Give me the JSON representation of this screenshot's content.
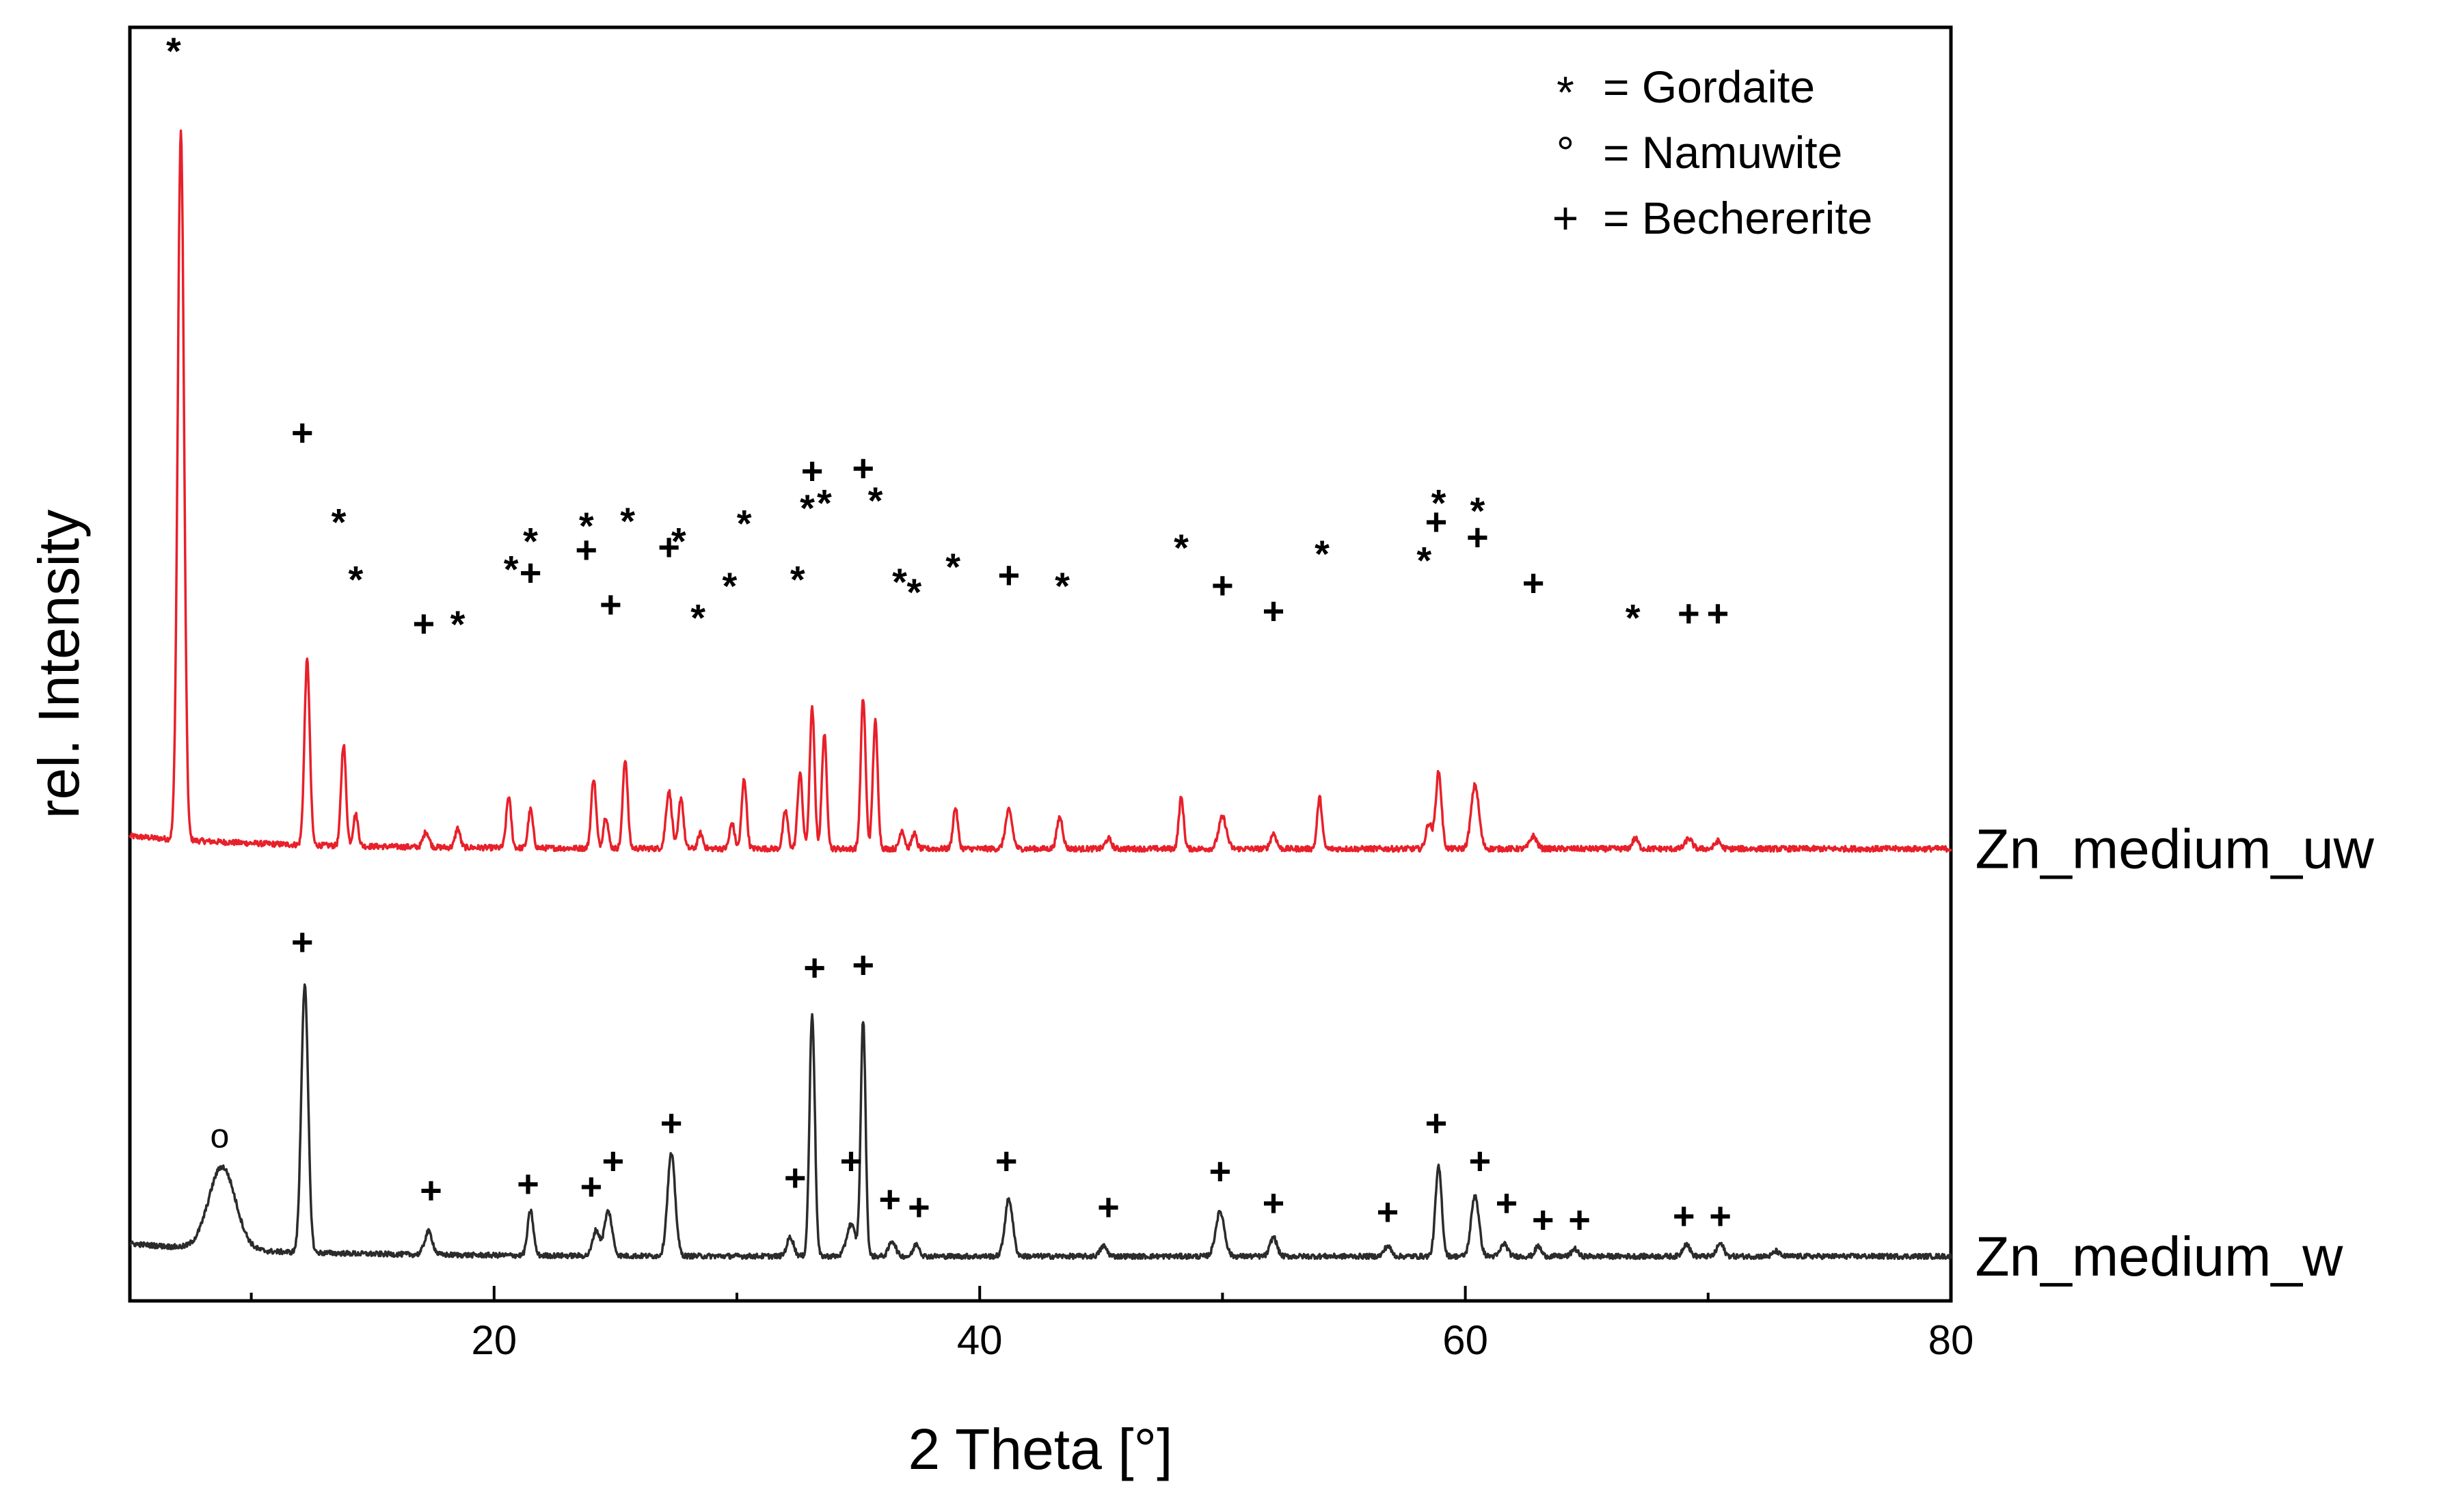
{
  "chart_data": {
    "type": "line",
    "title": "",
    "xlabel": "2 Theta [°]",
    "ylabel": "rel. Intensity",
    "xlim": [
      5,
      80
    ],
    "ylim": [
      0,
      1
    ],
    "yticks_shown": false,
    "grid": false,
    "xticks": [
      {
        "value": 20,
        "label": "20"
      },
      {
        "value": 40,
        "label": "40"
      },
      {
        "value": 60,
        "label": "60"
      },
      {
        "value": 80,
        "label": "80"
      }
    ],
    "legend": {
      "position": "top-right",
      "entries": [
        {
          "symbol": "*",
          "text": "= Gordaite"
        },
        {
          "symbol": "°",
          "text": "= Namuwite"
        },
        {
          "symbol": "+",
          "text": "= Bechererite"
        }
      ]
    },
    "series": [
      {
        "name": "Zn_medium_uw",
        "color": "#e8202a",
        "baseline": 0.355,
        "noise": 0.0022,
        "peaks": [
          {
            "x": 7.1,
            "h": 0.555,
            "w": 0.13
          },
          {
            "x": 12.3,
            "h": 0.145,
            "w": 0.11
          },
          {
            "x": 13.8,
            "h": 0.08,
            "w": 0.1
          },
          {
            "x": 14.3,
            "h": 0.025,
            "w": 0.1
          },
          {
            "x": 17.2,
            "h": 0.012,
            "w": 0.12
          },
          {
            "x": 18.5,
            "h": 0.015,
            "w": 0.1
          },
          {
            "x": 20.6,
            "h": 0.04,
            "w": 0.1
          },
          {
            "x": 21.5,
            "h": 0.03,
            "w": 0.1
          },
          {
            "x": 24.1,
            "h": 0.055,
            "w": 0.1
          },
          {
            "x": 24.6,
            "h": 0.025,
            "w": 0.1
          },
          {
            "x": 25.4,
            "h": 0.07,
            "w": 0.1
          },
          {
            "x": 27.2,
            "h": 0.045,
            "w": 0.12
          },
          {
            "x": 27.7,
            "h": 0.04,
            "w": 0.1
          },
          {
            "x": 28.5,
            "h": 0.012,
            "w": 0.1
          },
          {
            "x": 29.8,
            "h": 0.02,
            "w": 0.1
          },
          {
            "x": 30.3,
            "h": 0.055,
            "w": 0.1
          },
          {
            "x": 32.0,
            "h": 0.03,
            "w": 0.1
          },
          {
            "x": 32.6,
            "h": 0.06,
            "w": 0.1
          },
          {
            "x": 33.1,
            "h": 0.11,
            "w": 0.1
          },
          {
            "x": 33.6,
            "h": 0.09,
            "w": 0.1
          },
          {
            "x": 35.2,
            "h": 0.118,
            "w": 0.1
          },
          {
            "x": 35.7,
            "h": 0.1,
            "w": 0.1
          },
          {
            "x": 36.8,
            "h": 0.015,
            "w": 0.1
          },
          {
            "x": 37.3,
            "h": 0.012,
            "w": 0.1
          },
          {
            "x": 39.0,
            "h": 0.032,
            "w": 0.1
          },
          {
            "x": 41.2,
            "h": 0.03,
            "w": 0.14
          },
          {
            "x": 43.3,
            "h": 0.025,
            "w": 0.12
          },
          {
            "x": 45.3,
            "h": 0.008,
            "w": 0.12
          },
          {
            "x": 48.3,
            "h": 0.04,
            "w": 0.1
          },
          {
            "x": 50.0,
            "h": 0.025,
            "w": 0.16
          },
          {
            "x": 52.1,
            "h": 0.012,
            "w": 0.12
          },
          {
            "x": 54.0,
            "h": 0.04,
            "w": 0.1
          },
          {
            "x": 58.5,
            "h": 0.02,
            "w": 0.12
          },
          {
            "x": 58.9,
            "h": 0.06,
            "w": 0.12
          },
          {
            "x": 60.4,
            "h": 0.05,
            "w": 0.16
          },
          {
            "x": 62.8,
            "h": 0.01,
            "w": 0.14
          },
          {
            "x": 67.0,
            "h": 0.008,
            "w": 0.12
          },
          {
            "x": 69.2,
            "h": 0.008,
            "w": 0.14
          },
          {
            "x": 70.4,
            "h": 0.006,
            "w": 0.12
          }
        ],
        "label_x": 81.0,
        "markers": [
          {
            "x": 6.8,
            "y": 0.985,
            "sym": "*"
          },
          {
            "x": 12.1,
            "y": 0.68,
            "sym": "+"
          },
          {
            "x": 13.6,
            "y": 0.615,
            "sym": "*"
          },
          {
            "x": 14.3,
            "y": 0.57,
            "sym": "*"
          },
          {
            "x": 17.1,
            "y": 0.53,
            "sym": "+"
          },
          {
            "x": 18.5,
            "y": 0.535,
            "sym": "*"
          },
          {
            "x": 20.7,
            "y": 0.578,
            "sym": "*"
          },
          {
            "x": 21.5,
            "y": 0.6,
            "sym": "*"
          },
          {
            "x": 21.5,
            "y": 0.57,
            "sym": "+"
          },
          {
            "x": 23.8,
            "y": 0.612,
            "sym": "*"
          },
          {
            "x": 23.8,
            "y": 0.588,
            "sym": "+"
          },
          {
            "x": 24.8,
            "y": 0.545,
            "sym": "+"
          },
          {
            "x": 25.5,
            "y": 0.616,
            "sym": "*"
          },
          {
            "x": 27.2,
            "y": 0.59,
            "sym": "+"
          },
          {
            "x": 27.6,
            "y": 0.6,
            "sym": "*"
          },
          {
            "x": 28.4,
            "y": 0.54,
            "sym": "*"
          },
          {
            "x": 29.7,
            "y": 0.565,
            "sym": "*"
          },
          {
            "x": 30.3,
            "y": 0.614,
            "sym": "*"
          },
          {
            "x": 32.5,
            "y": 0.57,
            "sym": "*"
          },
          {
            "x": 32.9,
            "y": 0.626,
            "sym": "*"
          },
          {
            "x": 33.1,
            "y": 0.65,
            "sym": "+"
          },
          {
            "x": 33.6,
            "y": 0.63,
            "sym": "*"
          },
          {
            "x": 35.2,
            "y": 0.652,
            "sym": "+"
          },
          {
            "x": 35.7,
            "y": 0.632,
            "sym": "*"
          },
          {
            "x": 36.7,
            "y": 0.568,
            "sym": "*"
          },
          {
            "x": 37.3,
            "y": 0.56,
            "sym": "*"
          },
          {
            "x": 38.9,
            "y": 0.58,
            "sym": "*"
          },
          {
            "x": 41.2,
            "y": 0.568,
            "sym": "+"
          },
          {
            "x": 43.4,
            "y": 0.565,
            "sym": "*"
          },
          {
            "x": 48.3,
            "y": 0.595,
            "sym": "*"
          },
          {
            "x": 50.0,
            "y": 0.56,
            "sym": "+"
          },
          {
            "x": 52.1,
            "y": 0.54,
            "sym": "+"
          },
          {
            "x": 54.1,
            "y": 0.59,
            "sym": "*"
          },
          {
            "x": 58.3,
            "y": 0.585,
            "sym": "*"
          },
          {
            "x": 58.8,
            "y": 0.61,
            "sym": "+"
          },
          {
            "x": 58.9,
            "y": 0.63,
            "sym": "*"
          },
          {
            "x": 60.5,
            "y": 0.624,
            "sym": "*"
          },
          {
            "x": 60.5,
            "y": 0.598,
            "sym": "+"
          },
          {
            "x": 62.8,
            "y": 0.562,
            "sym": "+"
          },
          {
            "x": 66.9,
            "y": 0.54,
            "sym": "*"
          },
          {
            "x": 69.2,
            "y": 0.538,
            "sym": "+"
          },
          {
            "x": 70.4,
            "y": 0.538,
            "sym": "+"
          }
        ]
      },
      {
        "name": "Zn_medium_w",
        "color": "#2b2b2b",
        "baseline": 0.035,
        "noise": 0.002,
        "peaks": [
          {
            "x": 8.8,
            "h": 0.065,
            "w": 0.55
          },
          {
            "x": 12.2,
            "h": 0.21,
            "w": 0.14
          },
          {
            "x": 17.3,
            "h": 0.018,
            "w": 0.16
          },
          {
            "x": 21.5,
            "h": 0.035,
            "w": 0.12
          },
          {
            "x": 24.2,
            "h": 0.02,
            "w": 0.14
          },
          {
            "x": 24.7,
            "h": 0.035,
            "w": 0.16
          },
          {
            "x": 27.3,
            "h": 0.08,
            "w": 0.16
          },
          {
            "x": 32.2,
            "h": 0.015,
            "w": 0.14
          },
          {
            "x": 33.1,
            "h": 0.19,
            "w": 0.11
          },
          {
            "x": 34.7,
            "h": 0.025,
            "w": 0.18
          },
          {
            "x": 35.2,
            "h": 0.185,
            "w": 0.1
          },
          {
            "x": 36.4,
            "h": 0.012,
            "w": 0.14
          },
          {
            "x": 37.4,
            "h": 0.01,
            "w": 0.12
          },
          {
            "x": 41.2,
            "h": 0.045,
            "w": 0.16
          },
          {
            "x": 45.1,
            "h": 0.008,
            "w": 0.14
          },
          {
            "x": 49.9,
            "h": 0.035,
            "w": 0.18
          },
          {
            "x": 52.1,
            "h": 0.015,
            "w": 0.14
          },
          {
            "x": 56.8,
            "h": 0.008,
            "w": 0.14
          },
          {
            "x": 58.9,
            "h": 0.07,
            "w": 0.13
          },
          {
            "x": 60.4,
            "h": 0.048,
            "w": 0.16
          },
          {
            "x": 61.6,
            "h": 0.01,
            "w": 0.14
          },
          {
            "x": 63.0,
            "h": 0.008,
            "w": 0.12
          },
          {
            "x": 64.5,
            "h": 0.006,
            "w": 0.12
          },
          {
            "x": 69.1,
            "h": 0.01,
            "w": 0.14
          },
          {
            "x": 70.5,
            "h": 0.01,
            "w": 0.14
          },
          {
            "x": 72.8,
            "h": 0.004,
            "w": 0.12
          }
        ],
        "label_x": 81.0,
        "markers": [
          {
            "x": 8.7,
            "y": 0.13,
            "sym": "°"
          },
          {
            "x": 12.1,
            "y": 0.28,
            "sym": "+"
          },
          {
            "x": 17.4,
            "y": 0.085,
            "sym": "+"
          },
          {
            "x": 21.4,
            "y": 0.09,
            "sym": "+"
          },
          {
            "x": 24.0,
            "y": 0.088,
            "sym": "+"
          },
          {
            "x": 24.9,
            "y": 0.108,
            "sym": "+"
          },
          {
            "x": 27.3,
            "y": 0.138,
            "sym": "+"
          },
          {
            "x": 32.4,
            "y": 0.095,
            "sym": "+"
          },
          {
            "x": 33.2,
            "y": 0.26,
            "sym": "+"
          },
          {
            "x": 34.7,
            "y": 0.108,
            "sym": "+"
          },
          {
            "x": 35.2,
            "y": 0.262,
            "sym": "+"
          },
          {
            "x": 36.3,
            "y": 0.078,
            "sym": "+"
          },
          {
            "x": 37.5,
            "y": 0.072,
            "sym": "+"
          },
          {
            "x": 41.1,
            "y": 0.108,
            "sym": "+"
          },
          {
            "x": 45.3,
            "y": 0.072,
            "sym": "+"
          },
          {
            "x": 49.9,
            "y": 0.1,
            "sym": "+"
          },
          {
            "x": 52.1,
            "y": 0.075,
            "sym": "+"
          },
          {
            "x": 56.8,
            "y": 0.068,
            "sym": "+"
          },
          {
            "x": 58.8,
            "y": 0.138,
            "sym": "+"
          },
          {
            "x": 60.6,
            "y": 0.108,
            "sym": "+"
          },
          {
            "x": 61.7,
            "y": 0.075,
            "sym": "+"
          },
          {
            "x": 63.2,
            "y": 0.062,
            "sym": "+"
          },
          {
            "x": 64.7,
            "y": 0.062,
            "sym": "+"
          },
          {
            "x": 69.0,
            "y": 0.065,
            "sym": "+"
          },
          {
            "x": 70.5,
            "y": 0.065,
            "sym": "+"
          }
        ]
      }
    ]
  }
}
